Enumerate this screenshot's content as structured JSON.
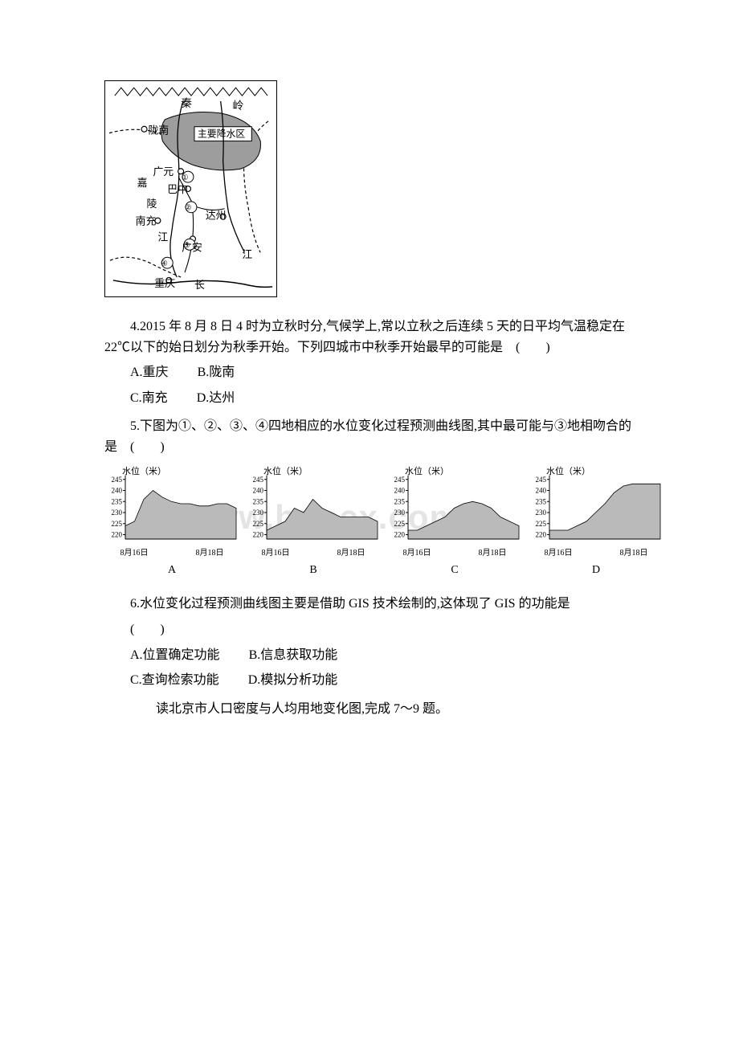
{
  "watermark": "www.bdocx.com",
  "map": {
    "title_labels": {
      "qinling": "秦",
      "ling": "岭",
      "longnan": "陇南",
      "rain_area": "主要降水区",
      "jiayuan": "广元",
      "bazhong": "巴中",
      "jialin": "嘉",
      "ling_river": "陵",
      "nanchong": "南充",
      "dazhou": "达州",
      "jiang1": "江",
      "guangan": "广安",
      "jiang2": "江",
      "chongqing": "重庆",
      "chang": "长",
      "num1": "①",
      "num2": "②",
      "num3": "③",
      "num4": "④"
    }
  },
  "q4": {
    "text": "4.2015 年 8 月 8 日 4 时为立秋时分,气候学上,常以立秋之后连续 5 天的日平均气温稳定在 22℃以下的始日划分为秋季开始。下列四城市中秋季开始最早的可能是　(　　)",
    "optA": "A.重庆",
    "optB": "B.陇南",
    "optC": "C.南充",
    "optD": "D.达州"
  },
  "q5": {
    "text": "5.下图为①、②、③、④四地相应的水位变化过程预测曲线图,其中最可能与③地相吻合的是　(　　)",
    "panel_axis_label": "水位（米）",
    "y_ticks": [
      "245",
      "240",
      "235",
      "230",
      "225",
      "220"
    ],
    "x_left": "8月16日",
    "x_right": "8月18日",
    "panels": [
      {
        "label": "A",
        "series": [
          224,
          226,
          236,
          240,
          237,
          235,
          234,
          234,
          233,
          233,
          234,
          234,
          232
        ]
      },
      {
        "label": "B",
        "series": [
          222,
          224,
          226,
          232,
          230,
          236,
          232,
          230,
          228,
          228,
          228,
          228,
          226
        ]
      },
      {
        "label": "C",
        "series": [
          222,
          222,
          224,
          226,
          228,
          232,
          234,
          235,
          234,
          232,
          228,
          226,
          224
        ]
      },
      {
        "label": "D",
        "series": [
          222,
          222,
          222,
          224,
          226,
          230,
          234,
          239,
          242,
          243,
          243,
          243,
          243
        ]
      }
    ],
    "chart_style": {
      "width": 168,
      "height": 95,
      "y_min": 218,
      "y_max": 246,
      "fill": "#bababa",
      "axis_color": "#000000",
      "tick_fontsize": 9,
      "axis_label_fontsize": 11
    }
  },
  "q6": {
    "text": "6.水位变化过程预测曲线图主要是借助 GIS 技术绘制的,这体现了 GIS 的功能是",
    "blank": "(　　)",
    "optA": "A.位置确定功能",
    "optB": "B.信息获取功能",
    "optC": "C.查询检索功能",
    "optD": "D.模拟分析功能"
  },
  "q7intro": {
    "text": "读北京市人口密度与人均用地变化图,完成 7～9 题。"
  }
}
